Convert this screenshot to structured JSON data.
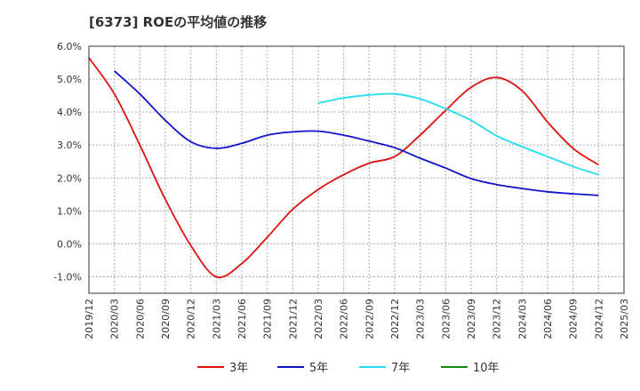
{
  "chart_data": {
    "type": "line",
    "title": "[6373]  ROEの平均値の推移",
    "xlabel": "",
    "ylabel": "",
    "ylim": [
      -1.5,
      6.0
    ],
    "yticks": [
      6.0,
      5.0,
      4.0,
      3.0,
      2.0,
      1.0,
      0.0,
      -1.0
    ],
    "ytick_labels": [
      "6.0%",
      "5.0%",
      "4.0%",
      "3.0%",
      "2.0%",
      "1.0%",
      "0.0%",
      "-1.0%"
    ],
    "xtick_labels": [
      "2019/12",
      "2020/03",
      "2020/06",
      "2020/09",
      "2020/12",
      "2021/03",
      "2021/06",
      "2021/09",
      "2021/12",
      "2022/03",
      "2022/06",
      "2022/09",
      "2022/12",
      "2023/03",
      "2023/06",
      "2023/09",
      "2023/12",
      "2024/03",
      "2024/06",
      "2024/09",
      "2024/12",
      "2025/03"
    ],
    "series": [
      {
        "name": "3年",
        "color": "#dd1111",
        "values": [
          5.65,
          4.55,
          3.0,
          1.35,
          -0.05,
          -1.0,
          -0.6,
          0.2,
          1.05,
          1.65,
          2.1,
          2.45,
          2.65,
          3.3,
          4.05,
          4.75,
          5.05,
          4.65,
          3.7,
          2.9,
          2.4
        ]
      },
      {
        "name": "5年",
        "color": "#1111cc",
        "values": [
          null,
          5.25,
          4.55,
          3.75,
          3.1,
          2.9,
          3.05,
          3.3,
          3.4,
          3.42,
          3.3,
          3.12,
          2.92,
          2.6,
          2.3,
          1.98,
          1.8,
          1.68,
          1.58,
          1.52,
          1.47
        ]
      },
      {
        "name": "7年",
        "color": "#22ddee",
        "values": [
          null,
          null,
          null,
          null,
          null,
          null,
          null,
          null,
          null,
          4.27,
          4.43,
          4.52,
          4.55,
          4.4,
          4.1,
          3.75,
          3.28,
          2.95,
          2.65,
          2.35,
          2.1
        ]
      },
      {
        "name": "10年",
        "color": "#118811",
        "values": [
          null,
          null,
          null,
          null,
          null,
          null,
          null,
          null,
          null,
          null,
          null,
          null,
          null,
          null,
          null,
          null,
          null,
          null,
          null,
          null,
          null
        ]
      }
    ]
  }
}
